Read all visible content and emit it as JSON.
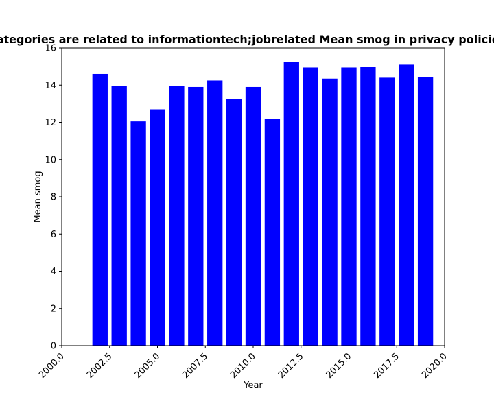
{
  "chart_data": {
    "type": "bar",
    "title": "Categories are related to informationtech;jobrelated Mean smog in privacy policies",
    "xlabel": "Year",
    "ylabel": "Mean smog",
    "x": [
      2002,
      2003,
      2004,
      2005,
      2006,
      2007,
      2008,
      2009,
      2010,
      2011,
      2012,
      2013,
      2014,
      2015,
      2016,
      2017,
      2018,
      2019
    ],
    "values": [
      14.6,
      13.95,
      12.05,
      12.7,
      13.95,
      13.9,
      14.25,
      13.25,
      13.9,
      12.2,
      15.25,
      14.95,
      14.35,
      14.95,
      15.0,
      14.4,
      15.1,
      14.45
    ],
    "xlim": [
      2000,
      2020
    ],
    "ylim": [
      0,
      16
    ],
    "xticks": [
      "2000.0",
      "2002.5",
      "2005.0",
      "2007.5",
      "2010.0",
      "2012.5",
      "2015.0",
      "2017.5",
      "2020.0"
    ],
    "yticks": [
      "0",
      "2",
      "4",
      "6",
      "8",
      "10",
      "12",
      "14",
      "16"
    ],
    "bar_color": "#0000ff",
    "grid": false,
    "legend": "none"
  }
}
